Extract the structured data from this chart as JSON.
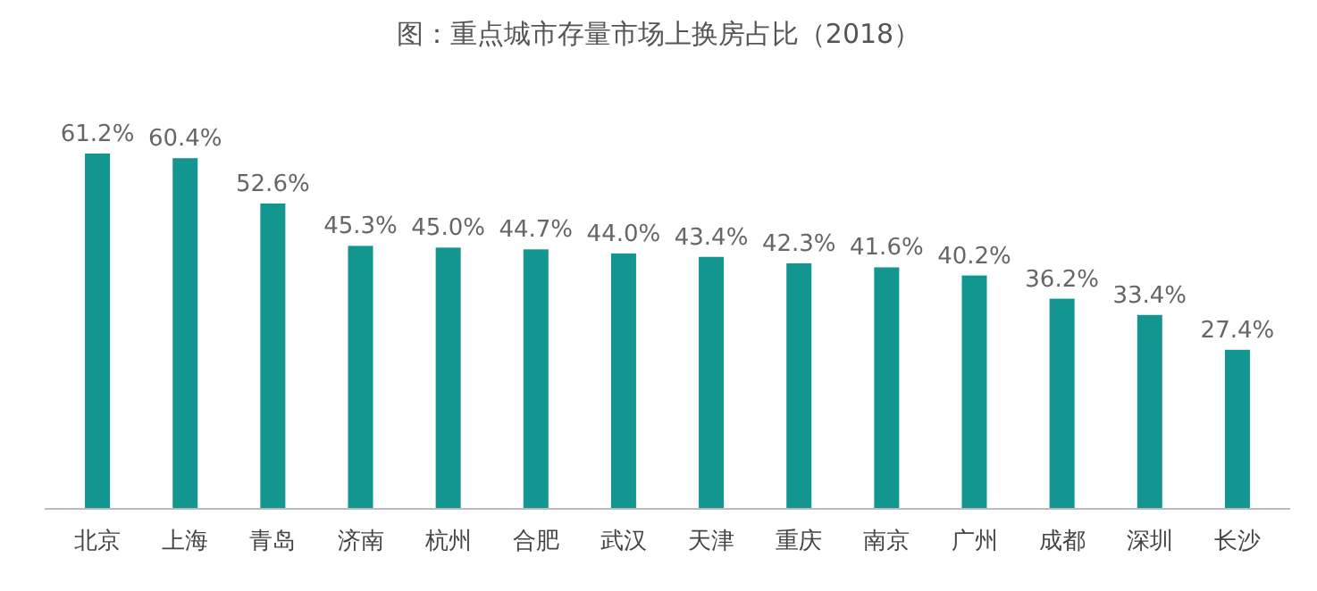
{
  "chart_data": {
    "type": "bar",
    "title": "图：重点城市存量市场上换房占比（2018）",
    "categories": [
      "北京",
      "上海",
      "青岛",
      "济南",
      "杭州",
      "合肥",
      "武汉",
      "天津",
      "重庆",
      "南京",
      "广州",
      "成都",
      "深圳",
      "长沙"
    ],
    "values": [
      61.2,
      60.4,
      52.6,
      45.3,
      45.0,
      44.7,
      44.0,
      43.4,
      42.3,
      41.6,
      40.2,
      36.2,
      33.4,
      27.4
    ],
    "value_labels": [
      "61.2%",
      "60.4%",
      "52.6%",
      "45.3%",
      "45.0%",
      "44.7%",
      "44.0%",
      "43.4%",
      "42.3%",
      "41.6%",
      "40.2%",
      "36.2%",
      "33.4%",
      "27.4%"
    ],
    "color": "#13968f"
  }
}
